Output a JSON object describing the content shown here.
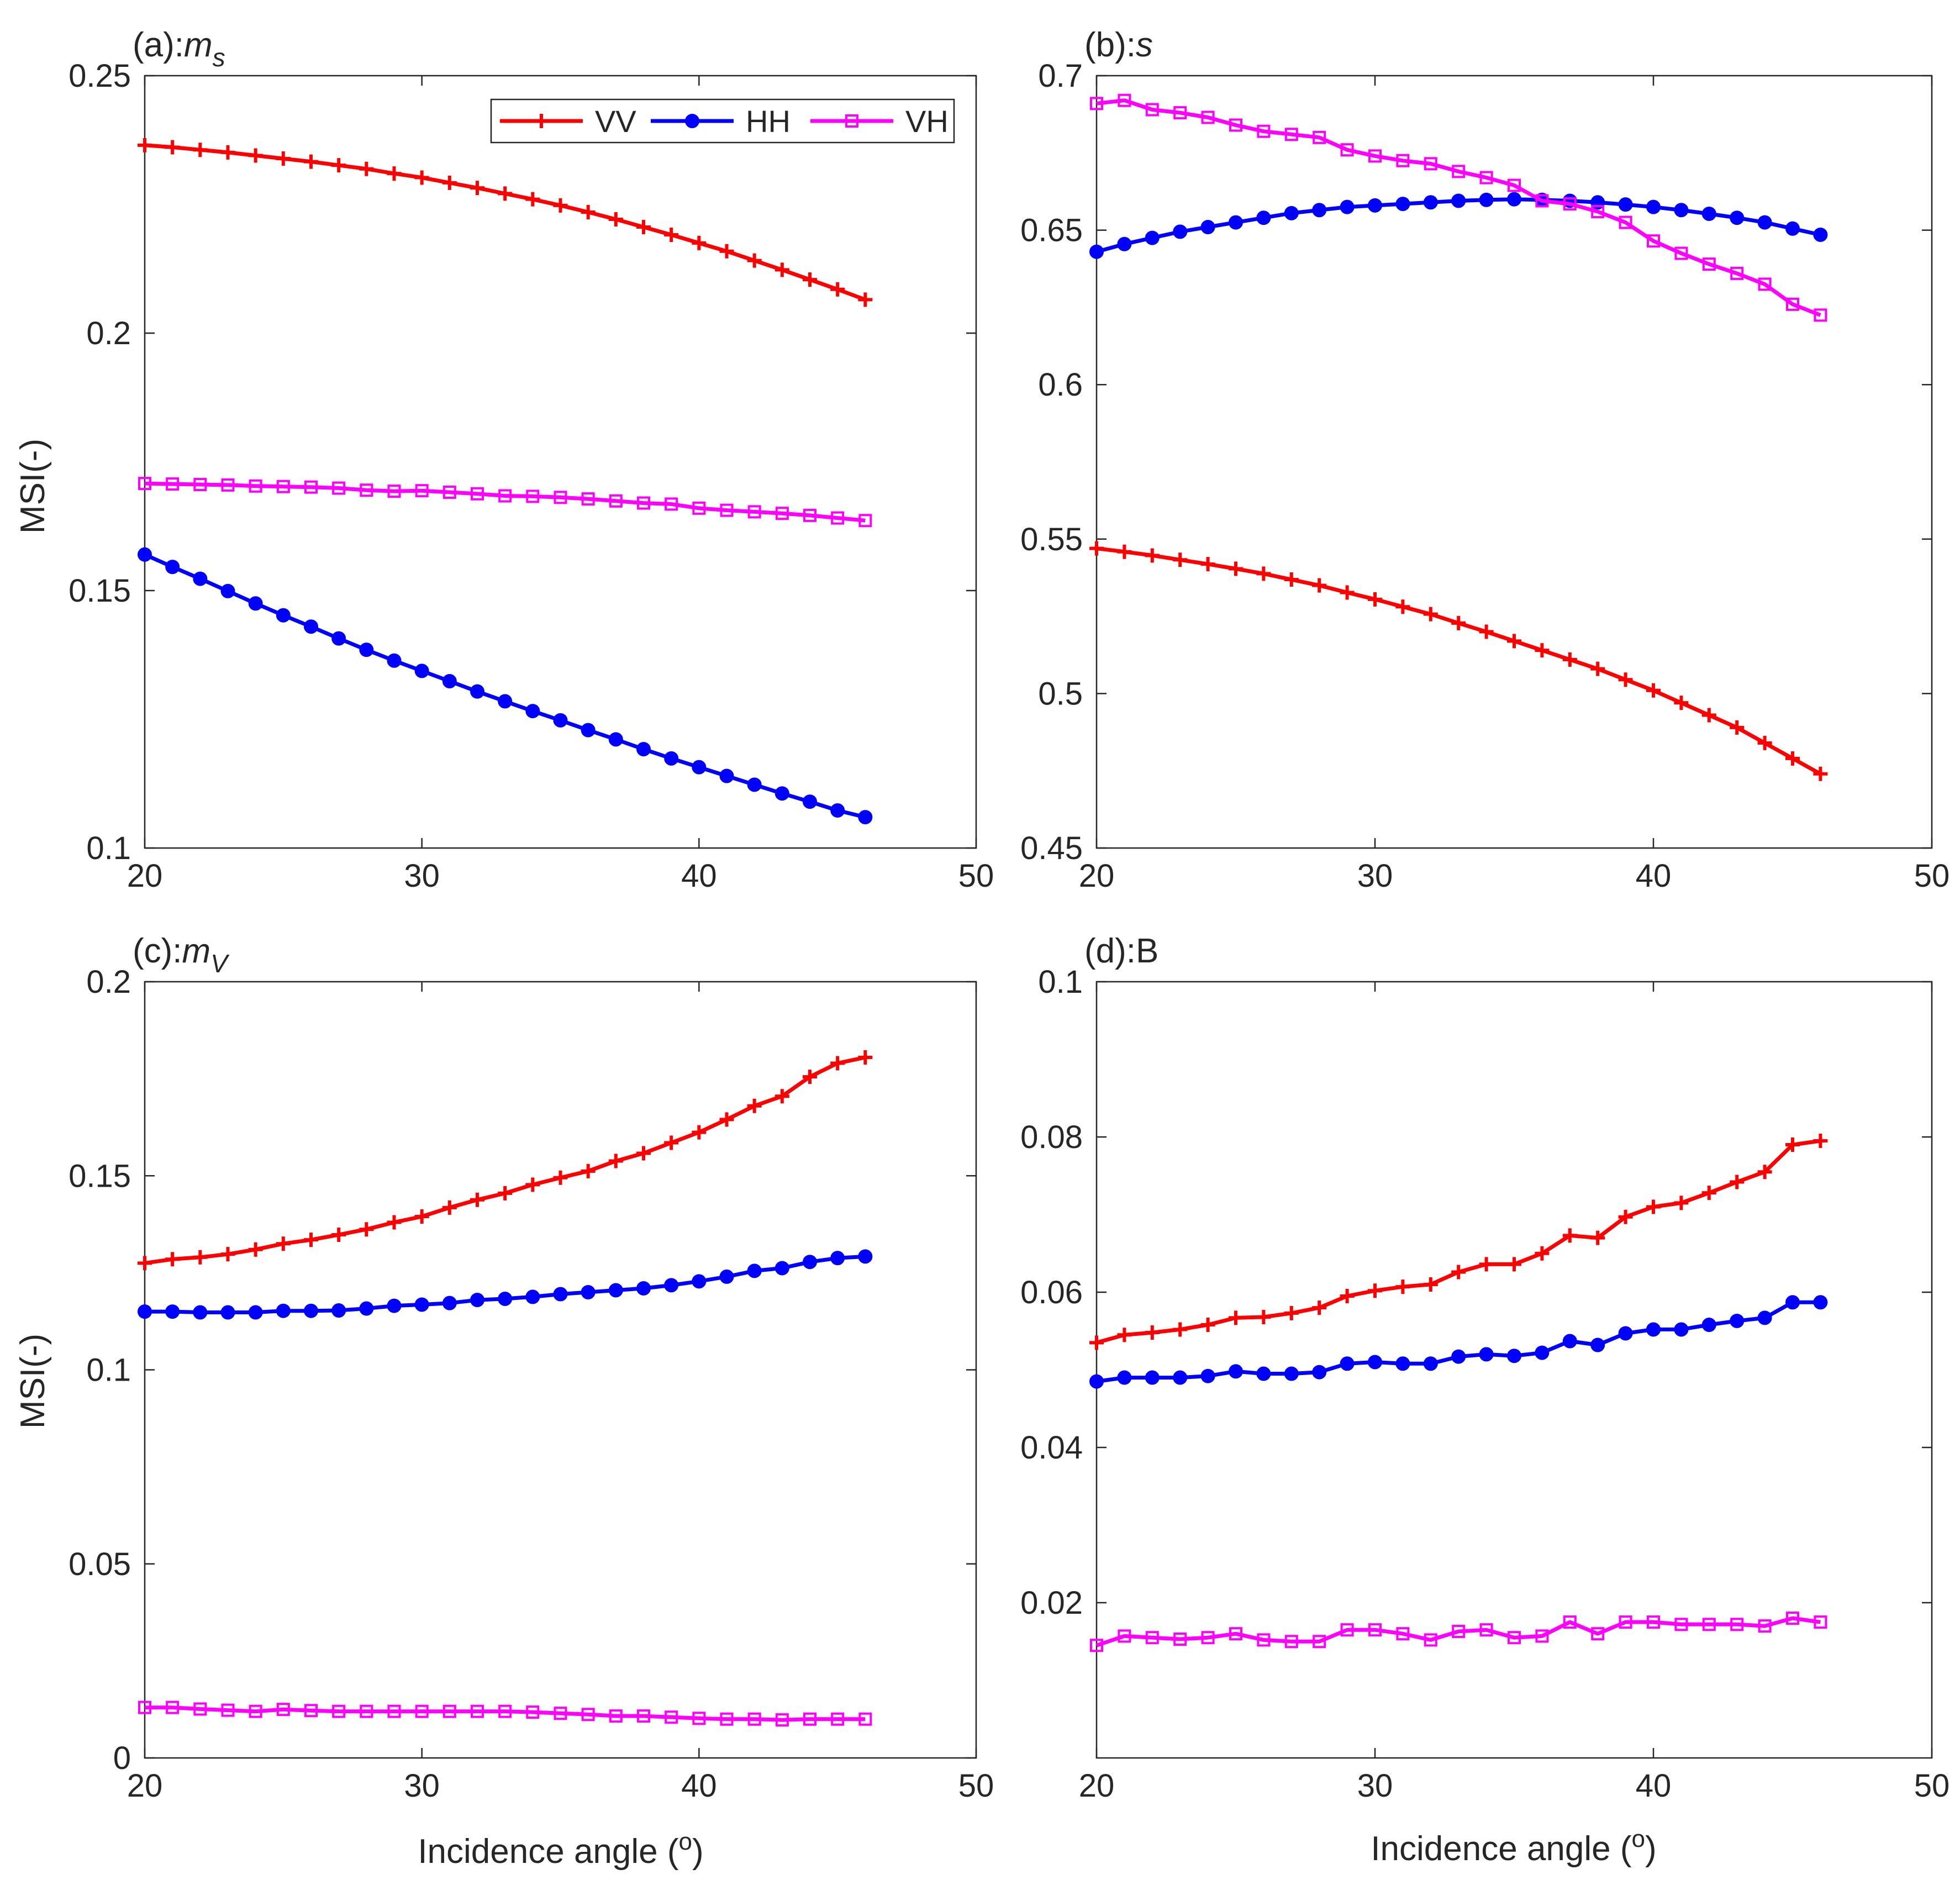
{
  "figure": {
    "ylabel": "MSI(-)",
    "xlabel": "Incidence angle",
    "xlabel_unit_prefix": "(",
    "xlabel_unit_sup": "o",
    "xlabel_unit_suffix": ")"
  },
  "legend": {
    "placement": "top-right of panel (a)",
    "entries": [
      {
        "name": "VV",
        "color": "#ff0000",
        "marker": "plus"
      },
      {
        "name": "HH",
        "color": "#0000ff",
        "marker": "circle"
      },
      {
        "name": "VH",
        "color": "#ff00ff",
        "marker": "square"
      }
    ]
  },
  "chart_data": [
    {
      "type": "line",
      "title_prefix": "(a):",
      "title_italic": "m",
      "title_sub": "s",
      "xlim": [
        20,
        50
      ],
      "ylim": [
        0.1,
        0.25
      ],
      "xticks": [
        "20",
        "30",
        "40",
        "50"
      ],
      "yticks": [
        "0.1",
        "0.15",
        "0.2",
        "0.25"
      ],
      "ytick_values": [
        0.1,
        0.15,
        0.2,
        0.25
      ],
      "grid": false,
      "x": [
        20,
        21,
        22,
        23,
        24,
        25,
        26,
        27,
        28,
        29,
        30,
        31,
        32,
        33,
        34,
        35,
        36,
        37,
        38,
        39,
        40,
        41,
        42,
        43,
        44,
        45,
        46
      ],
      "series": [
        {
          "name": "VV",
          "values": [
            0.2365,
            0.2361,
            0.2356,
            0.2351,
            0.2345,
            0.2339,
            0.2333,
            0.2326,
            0.2319,
            0.231,
            0.2302,
            0.2292,
            0.2282,
            0.2271,
            0.226,
            0.2248,
            0.2235,
            0.2221,
            0.2206,
            0.2191,
            0.2175,
            0.2159,
            0.2141,
            0.2123,
            0.2104,
            0.2085,
            0.2065
          ]
        },
        {
          "name": "HH",
          "values": [
            0.157,
            0.1546,
            0.1523,
            0.1499,
            0.1475,
            0.1452,
            0.143,
            0.1407,
            0.1385,
            0.1364,
            0.1344,
            0.1324,
            0.1304,
            0.1285,
            0.1266,
            0.1248,
            0.1229,
            0.1211,
            0.1192,
            0.1174,
            0.1157,
            0.114,
            0.1123,
            0.1106,
            0.109,
            0.1073,
            0.106
          ]
        },
        {
          "name": "VH",
          "values": [
            0.1708,
            0.1707,
            0.1706,
            0.1705,
            0.1703,
            0.1702,
            0.1701,
            0.1699,
            0.1695,
            0.1693,
            0.1694,
            0.1691,
            0.1688,
            0.1684,
            0.1683,
            0.1681,
            0.1678,
            0.1674,
            0.167,
            0.1668,
            0.166,
            0.1656,
            0.1653,
            0.165,
            0.1646,
            0.1641,
            0.1636
          ]
        }
      ]
    },
    {
      "type": "line",
      "title_prefix": "(b):",
      "title_italic": "s",
      "title_sub": "",
      "xlim": [
        20,
        50
      ],
      "ylim": [
        0.45,
        0.7
      ],
      "xticks": [
        "20",
        "30",
        "40",
        "50"
      ],
      "yticks": [
        "0.45",
        "0.5",
        "0.55",
        "0.6",
        "0.65",
        "0.7"
      ],
      "ytick_values": [
        0.45,
        0.5,
        0.55,
        0.6,
        0.65,
        0.7
      ],
      "grid": false,
      "x": [
        20,
        21,
        22,
        23,
        24,
        25,
        26,
        27,
        28,
        29,
        30,
        31,
        32,
        33,
        34,
        35,
        36,
        37,
        38,
        39,
        40,
        41,
        42,
        43,
        44,
        45,
        46
      ],
      "series": [
        {
          "name": "VV",
          "values": [
            0.547,
            0.5459,
            0.5447,
            0.5433,
            0.5419,
            0.5404,
            0.5388,
            0.5369,
            0.535,
            0.5327,
            0.5305,
            0.5281,
            0.5257,
            0.5228,
            0.52,
            0.517,
            0.514,
            0.511,
            0.508,
            0.5045,
            0.501,
            0.497,
            0.493,
            0.489,
            0.484,
            0.479,
            0.474
          ]
        },
        {
          "name": "HH",
          "values": [
            0.643,
            0.6455,
            0.6475,
            0.6495,
            0.651,
            0.6525,
            0.654,
            0.6555,
            0.6565,
            0.6575,
            0.658,
            0.6585,
            0.659,
            0.6595,
            0.6598,
            0.66,
            0.6598,
            0.6595,
            0.659,
            0.6583,
            0.6575,
            0.6565,
            0.6553,
            0.654,
            0.6525,
            0.6505,
            0.6485
          ]
        },
        {
          "name": "VH",
          "values": [
            0.691,
            0.692,
            0.689,
            0.688,
            0.6865,
            0.684,
            0.682,
            0.681,
            0.68,
            0.676,
            0.674,
            0.6725,
            0.6715,
            0.669,
            0.667,
            0.6645,
            0.6595,
            0.6585,
            0.656,
            0.6525,
            0.6465,
            0.6425,
            0.639,
            0.636,
            0.6325,
            0.626,
            0.6225
          ]
        }
      ]
    },
    {
      "type": "line",
      "title_prefix": "(c):",
      "title_italic": "m",
      "title_sub": "V",
      "xlim": [
        20,
        50
      ],
      "ylim": [
        0,
        0.2
      ],
      "xticks": [
        "20",
        "30",
        "40",
        "50"
      ],
      "yticks": [
        "0",
        "0.05",
        "0.1",
        "0.15",
        "0.2"
      ],
      "ytick_values": [
        0,
        0.05,
        0.1,
        0.15,
        0.2
      ],
      "grid": false,
      "x": [
        20,
        21,
        22,
        23,
        24,
        25,
        26,
        27,
        28,
        29,
        30,
        31,
        32,
        33,
        34,
        35,
        36,
        37,
        38,
        39,
        40,
        41,
        42,
        43,
        44,
        45,
        46
      ],
      "series": [
        {
          "name": "VV",
          "values": [
            0.1275,
            0.1285,
            0.129,
            0.1298,
            0.131,
            0.1325,
            0.1335,
            0.1348,
            0.1362,
            0.138,
            0.1395,
            0.1418,
            0.1438,
            0.1455,
            0.1477,
            0.1495,
            0.1512,
            0.1538,
            0.1558,
            0.1585,
            0.1612,
            0.1645,
            0.168,
            0.1705,
            0.1755,
            0.179,
            0.1805
          ]
        },
        {
          "name": "HH",
          "values": [
            0.115,
            0.115,
            0.1148,
            0.1148,
            0.1148,
            0.1152,
            0.1152,
            0.1153,
            0.1158,
            0.1165,
            0.1168,
            0.1172,
            0.118,
            0.1183,
            0.1188,
            0.1195,
            0.12,
            0.1205,
            0.121,
            0.1218,
            0.1228,
            0.124,
            0.1255,
            0.1262,
            0.1278,
            0.1288,
            0.1292
          ]
        },
        {
          "name": "VH",
          "values": [
            0.013,
            0.013,
            0.0126,
            0.0123,
            0.012,
            0.0125,
            0.0122,
            0.012,
            0.012,
            0.012,
            0.012,
            0.012,
            0.012,
            0.012,
            0.0118,
            0.0115,
            0.0112,
            0.0108,
            0.0108,
            0.0105,
            0.0102,
            0.01,
            0.01,
            0.0098,
            0.01,
            0.01,
            0.01
          ]
        }
      ]
    },
    {
      "type": "line",
      "title_prefix": "(d):B",
      "title_italic": "",
      "title_sub": "",
      "xlim": [
        20,
        50
      ],
      "ylim": [
        0,
        0.1
      ],
      "xticks": [
        "20",
        "30",
        "40",
        "50"
      ],
      "yticks": [
        "0.02",
        "0.04",
        "0.06",
        "0.08",
        "0.1"
      ],
      "ytick_values": [
        0.02,
        0.04,
        0.06,
        0.08,
        0.1
      ],
      "grid": false,
      "x": [
        20,
        21,
        22,
        23,
        24,
        25,
        26,
        27,
        28,
        29,
        30,
        31,
        32,
        33,
        34,
        35,
        36,
        37,
        38,
        39,
        40,
        41,
        42,
        43,
        44,
        45,
        46
      ],
      "series": [
        {
          "name": "VV",
          "values": [
            0.0535,
            0.0545,
            0.0548,
            0.0552,
            0.0558,
            0.0567,
            0.0568,
            0.0573,
            0.058,
            0.0595,
            0.0602,
            0.0607,
            0.061,
            0.0626,
            0.0636,
            0.0636,
            0.065,
            0.0673,
            0.067,
            0.0697,
            0.071,
            0.0715,
            0.0728,
            0.0742,
            0.0755,
            0.079,
            0.0795
          ]
        },
        {
          "name": "HH",
          "values": [
            0.0485,
            0.049,
            0.049,
            0.049,
            0.0492,
            0.0498,
            0.0495,
            0.0495,
            0.0497,
            0.0508,
            0.051,
            0.0508,
            0.0508,
            0.0517,
            0.052,
            0.0518,
            0.0522,
            0.0537,
            0.0532,
            0.0547,
            0.0552,
            0.0552,
            0.0558,
            0.0563,
            0.0567,
            0.0587,
            0.0587
          ]
        },
        {
          "name": "VH",
          "values": [
            0.0145,
            0.0157,
            0.0155,
            0.0153,
            0.0155,
            0.016,
            0.0152,
            0.015,
            0.015,
            0.0165,
            0.0165,
            0.016,
            0.0152,
            0.0163,
            0.0165,
            0.0155,
            0.0157,
            0.0175,
            0.016,
            0.0175,
            0.0175,
            0.0172,
            0.0172,
            0.0172,
            0.017,
            0.018,
            0.0175
          ]
        }
      ]
    }
  ]
}
